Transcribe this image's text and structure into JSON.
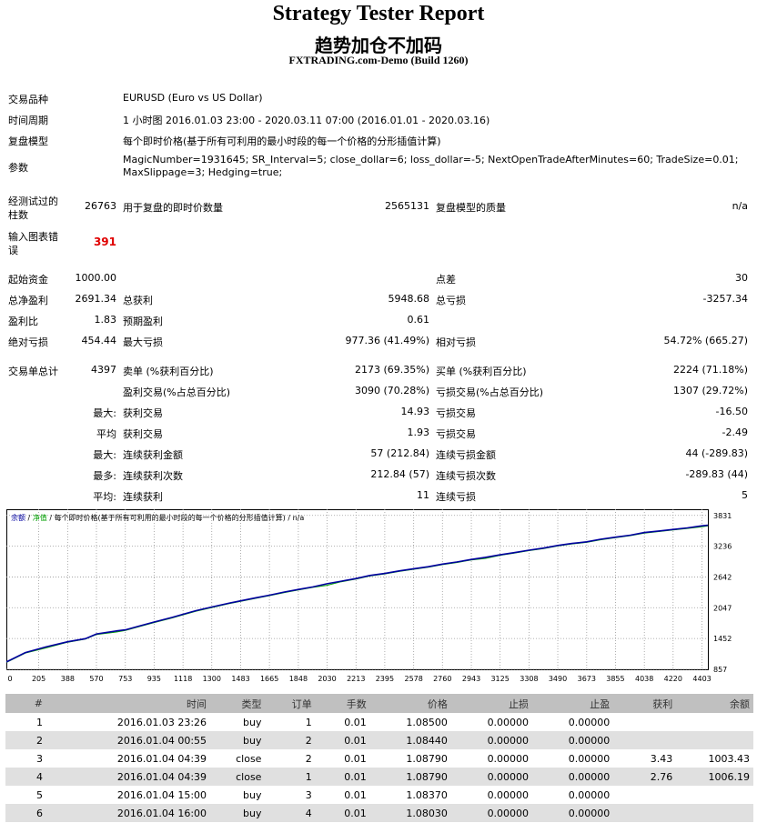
{
  "header": {
    "title": "Strategy Tester Report",
    "subtitle": "趋势加仓不加码",
    "company": "FXTRADING.com-Demo (Build 1260)"
  },
  "info": {
    "symbol_label": "交易品种",
    "symbol_value": "EURUSD (Euro vs US Dollar)",
    "period_label": "时间周期",
    "period_value": "1 小时图 2016.01.03 23:00 - 2020.03.11 07:00 (2016.01.01 - 2020.03.16)",
    "model_label": "复盘模型",
    "model_value": "每个即时价格(基于所有可利用的最小时段的每一个价格的分形插值计算)",
    "params_label": "参数",
    "params_line1": "MagicNumber=1931645; SR_Interval=5; close_dollar=6; loss_dollar=-5; NextOpenTradeAfterMinutes=60; TradeSize=0.01;",
    "params_line2": "MaxSlippage=3; Hedging=true;"
  },
  "bars": {
    "bars_label_1": "经测试过的",
    "bars_label_2": "柱数",
    "bars_value": "26763",
    "ticks_label": "用于复盘的即时价数量",
    "ticks_value": "2565131",
    "quality_label": "复盘模型的质量",
    "quality_value": "n/a",
    "errors_label_1": "输入图表错",
    "errors_label_2": "误",
    "errors_value": "391"
  },
  "stats": {
    "initial_deposit_label": "起始资金",
    "initial_deposit": "1000.00",
    "spread_label": "点差",
    "spread": "30",
    "net_profit_label": "总净盈利",
    "net_profit": "2691.34",
    "gross_profit_label": "总获利",
    "gross_profit": "5948.68",
    "gross_loss_label": "总亏损",
    "gross_loss": "-3257.34",
    "profit_factor_label": "盈利比",
    "profit_factor": "1.83",
    "expected_payoff_label": "预期盈利",
    "expected_payoff": "0.61",
    "abs_drawdown_label": "绝对亏损",
    "abs_drawdown": "454.44",
    "max_drawdown_label": "最大亏损",
    "max_drawdown": "977.36 (41.49%)",
    "rel_drawdown_label": "相对亏损",
    "rel_drawdown": "54.72% (665.27)",
    "total_trades_label": "交易单总计",
    "total_trades": "4397",
    "short_label": "卖单 (%获利百分比)",
    "short_value": "2173 (69.35%)",
    "long_label": "买单 (%获利百分比)",
    "long_value": "2224 (71.18%)",
    "profit_trades_label": "盈利交易(%占总百分比)",
    "profit_trades": "3090 (70.28%)",
    "loss_trades_label": "亏损交易(%占总百分比)",
    "loss_trades": "1307 (29.72%)",
    "largest_label": "最大:",
    "largest_profit_label": "获利交易",
    "largest_profit": "14.93",
    "largest_loss_label": "亏损交易",
    "largest_loss": "-16.50",
    "average_label": "平均",
    "average_profit_label": "获利交易",
    "average_profit": "1.93",
    "average_loss_label": "亏损交易",
    "average_loss": "-2.49",
    "max_label": "最大:",
    "max_consec_wins_label": "连续获利金额",
    "max_consec_wins": "57 (212.84)",
    "max_consec_losses_label": "连续亏损金额",
    "max_consec_losses": "44 (-289.83)",
    "maximal_label": "最多:",
    "maximal_consec_profit_label": "连续获利次数",
    "maximal_consec_profit": "212.84 (57)",
    "maximal_consec_loss_label": "连续亏损次数",
    "maximal_consec_loss": "-289.83 (44)",
    "avg_label": "平均:",
    "avg_consec_wins_label": "连续获利",
    "avg_consec_wins": "11",
    "avg_consec_losses_label": "连续亏损",
    "avg_consec_losses": "5"
  },
  "chart_data": {
    "type": "line",
    "legend": {
      "balance": "余额",
      "sep1": " / ",
      "equity": "净值",
      "sep2": " / ",
      "model": "每个即时价格(基于所有可利用的最小时段的每一个价格的分形插值计算)",
      "sep3": " / ",
      "quality": "n/a"
    },
    "x_ticks": [
      "0",
      "205",
      "388",
      "570",
      "753",
      "935",
      "1118",
      "1300",
      "1483",
      "1665",
      "1848",
      "2030",
      "2213",
      "2395",
      "2578",
      "2760",
      "2943",
      "3125",
      "3308",
      "3490",
      "3673",
      "3855",
      "4038",
      "4220",
      "4403"
    ],
    "y_ticks": [
      "3831",
      "3236",
      "2642",
      "2047",
      "1452",
      "857"
    ],
    "xlim": [
      0,
      4440
    ],
    "ylim": [
      857,
      3950
    ],
    "series": [
      {
        "name": "余额",
        "color": "#0000a0",
        "x": [
          0,
          120,
          250,
          388,
          500,
          570,
          700,
          753,
          850,
          935,
          1050,
          1118,
          1200,
          1300,
          1400,
          1483,
          1580,
          1665,
          1760,
          1848,
          1940,
          2030,
          2120,
          2213,
          2300,
          2395,
          2490,
          2578,
          2670,
          2760,
          2850,
          2943,
          3030,
          3125,
          3210,
          3308,
          3400,
          3490,
          3580,
          3673,
          3760,
          3855,
          3950,
          4038,
          4130,
          4220,
          4310,
          4403,
          4440
        ],
        "y": [
          1000,
          1180,
          1290,
          1390,
          1450,
          1540,
          1600,
          1620,
          1700,
          1770,
          1860,
          1920,
          1990,
          2060,
          2130,
          2180,
          2240,
          2290,
          2350,
          2400,
          2450,
          2510,
          2560,
          2610,
          2670,
          2710,
          2760,
          2800,
          2840,
          2890,
          2930,
          2980,
          3020,
          3070,
          3110,
          3160,
          3200,
          3250,
          3290,
          3320,
          3370,
          3410,
          3450,
          3500,
          3530,
          3560,
          3590,
          3630,
          3640
        ]
      },
      {
        "name": "净值",
        "color": "#00a000",
        "x": [
          0,
          120,
          250,
          388,
          500,
          570,
          700,
          753,
          850,
          935,
          1050,
          1118,
          1200,
          1300,
          1400,
          1483,
          1580,
          1665,
          1760,
          1848,
          1940,
          2030,
          2120,
          2213,
          2300,
          2395,
          2490,
          2578,
          2670,
          2760,
          2850,
          2943,
          3030,
          3125,
          3210,
          3308,
          3400,
          3490,
          3580,
          3673,
          3760,
          3855,
          3950,
          4038,
          4130,
          4220,
          4310,
          4403,
          4440
        ],
        "y": [
          990,
          1170,
          1270,
          1380,
          1440,
          1530,
          1580,
          1610,
          1690,
          1760,
          1850,
          1910,
          1980,
          2050,
          2120,
          2170,
          2230,
          2280,
          2340,
          2390,
          2440,
          2480,
          2550,
          2600,
          2660,
          2700,
          2750,
          2790,
          2830,
          2880,
          2920,
          2970,
          3000,
          3060,
          3100,
          3150,
          3190,
          3240,
          3280,
          3310,
          3360,
          3400,
          3440,
          3490,
          3520,
          3550,
          3580,
          3610,
          3630
        ]
      }
    ]
  },
  "trades": {
    "headers": [
      "#",
      "时间",
      "类型",
      "订单",
      "手数",
      "价格",
      "止损",
      "止盈",
      "获利",
      "余额"
    ],
    "rows": [
      [
        "1",
        "2016.01.03 23:26",
        "buy",
        "1",
        "0.01",
        "1.08500",
        "0.00000",
        "0.00000",
        "",
        ""
      ],
      [
        "2",
        "2016.01.04 00:55",
        "buy",
        "2",
        "0.01",
        "1.08440",
        "0.00000",
        "0.00000",
        "",
        ""
      ],
      [
        "3",
        "2016.01.04 04:39",
        "close",
        "2",
        "0.01",
        "1.08790",
        "0.00000",
        "0.00000",
        "3.43",
        "1003.43"
      ],
      [
        "4",
        "2016.01.04 04:39",
        "close",
        "1",
        "0.01",
        "1.08790",
        "0.00000",
        "0.00000",
        "2.76",
        "1006.19"
      ],
      [
        "5",
        "2016.01.04 15:00",
        "buy",
        "3",
        "0.01",
        "1.08370",
        "0.00000",
        "0.00000",
        "",
        ""
      ],
      [
        "6",
        "2016.01.04 16:00",
        "buy",
        "4",
        "0.01",
        "1.08030",
        "0.00000",
        "0.00000",
        "",
        ""
      ]
    ]
  }
}
